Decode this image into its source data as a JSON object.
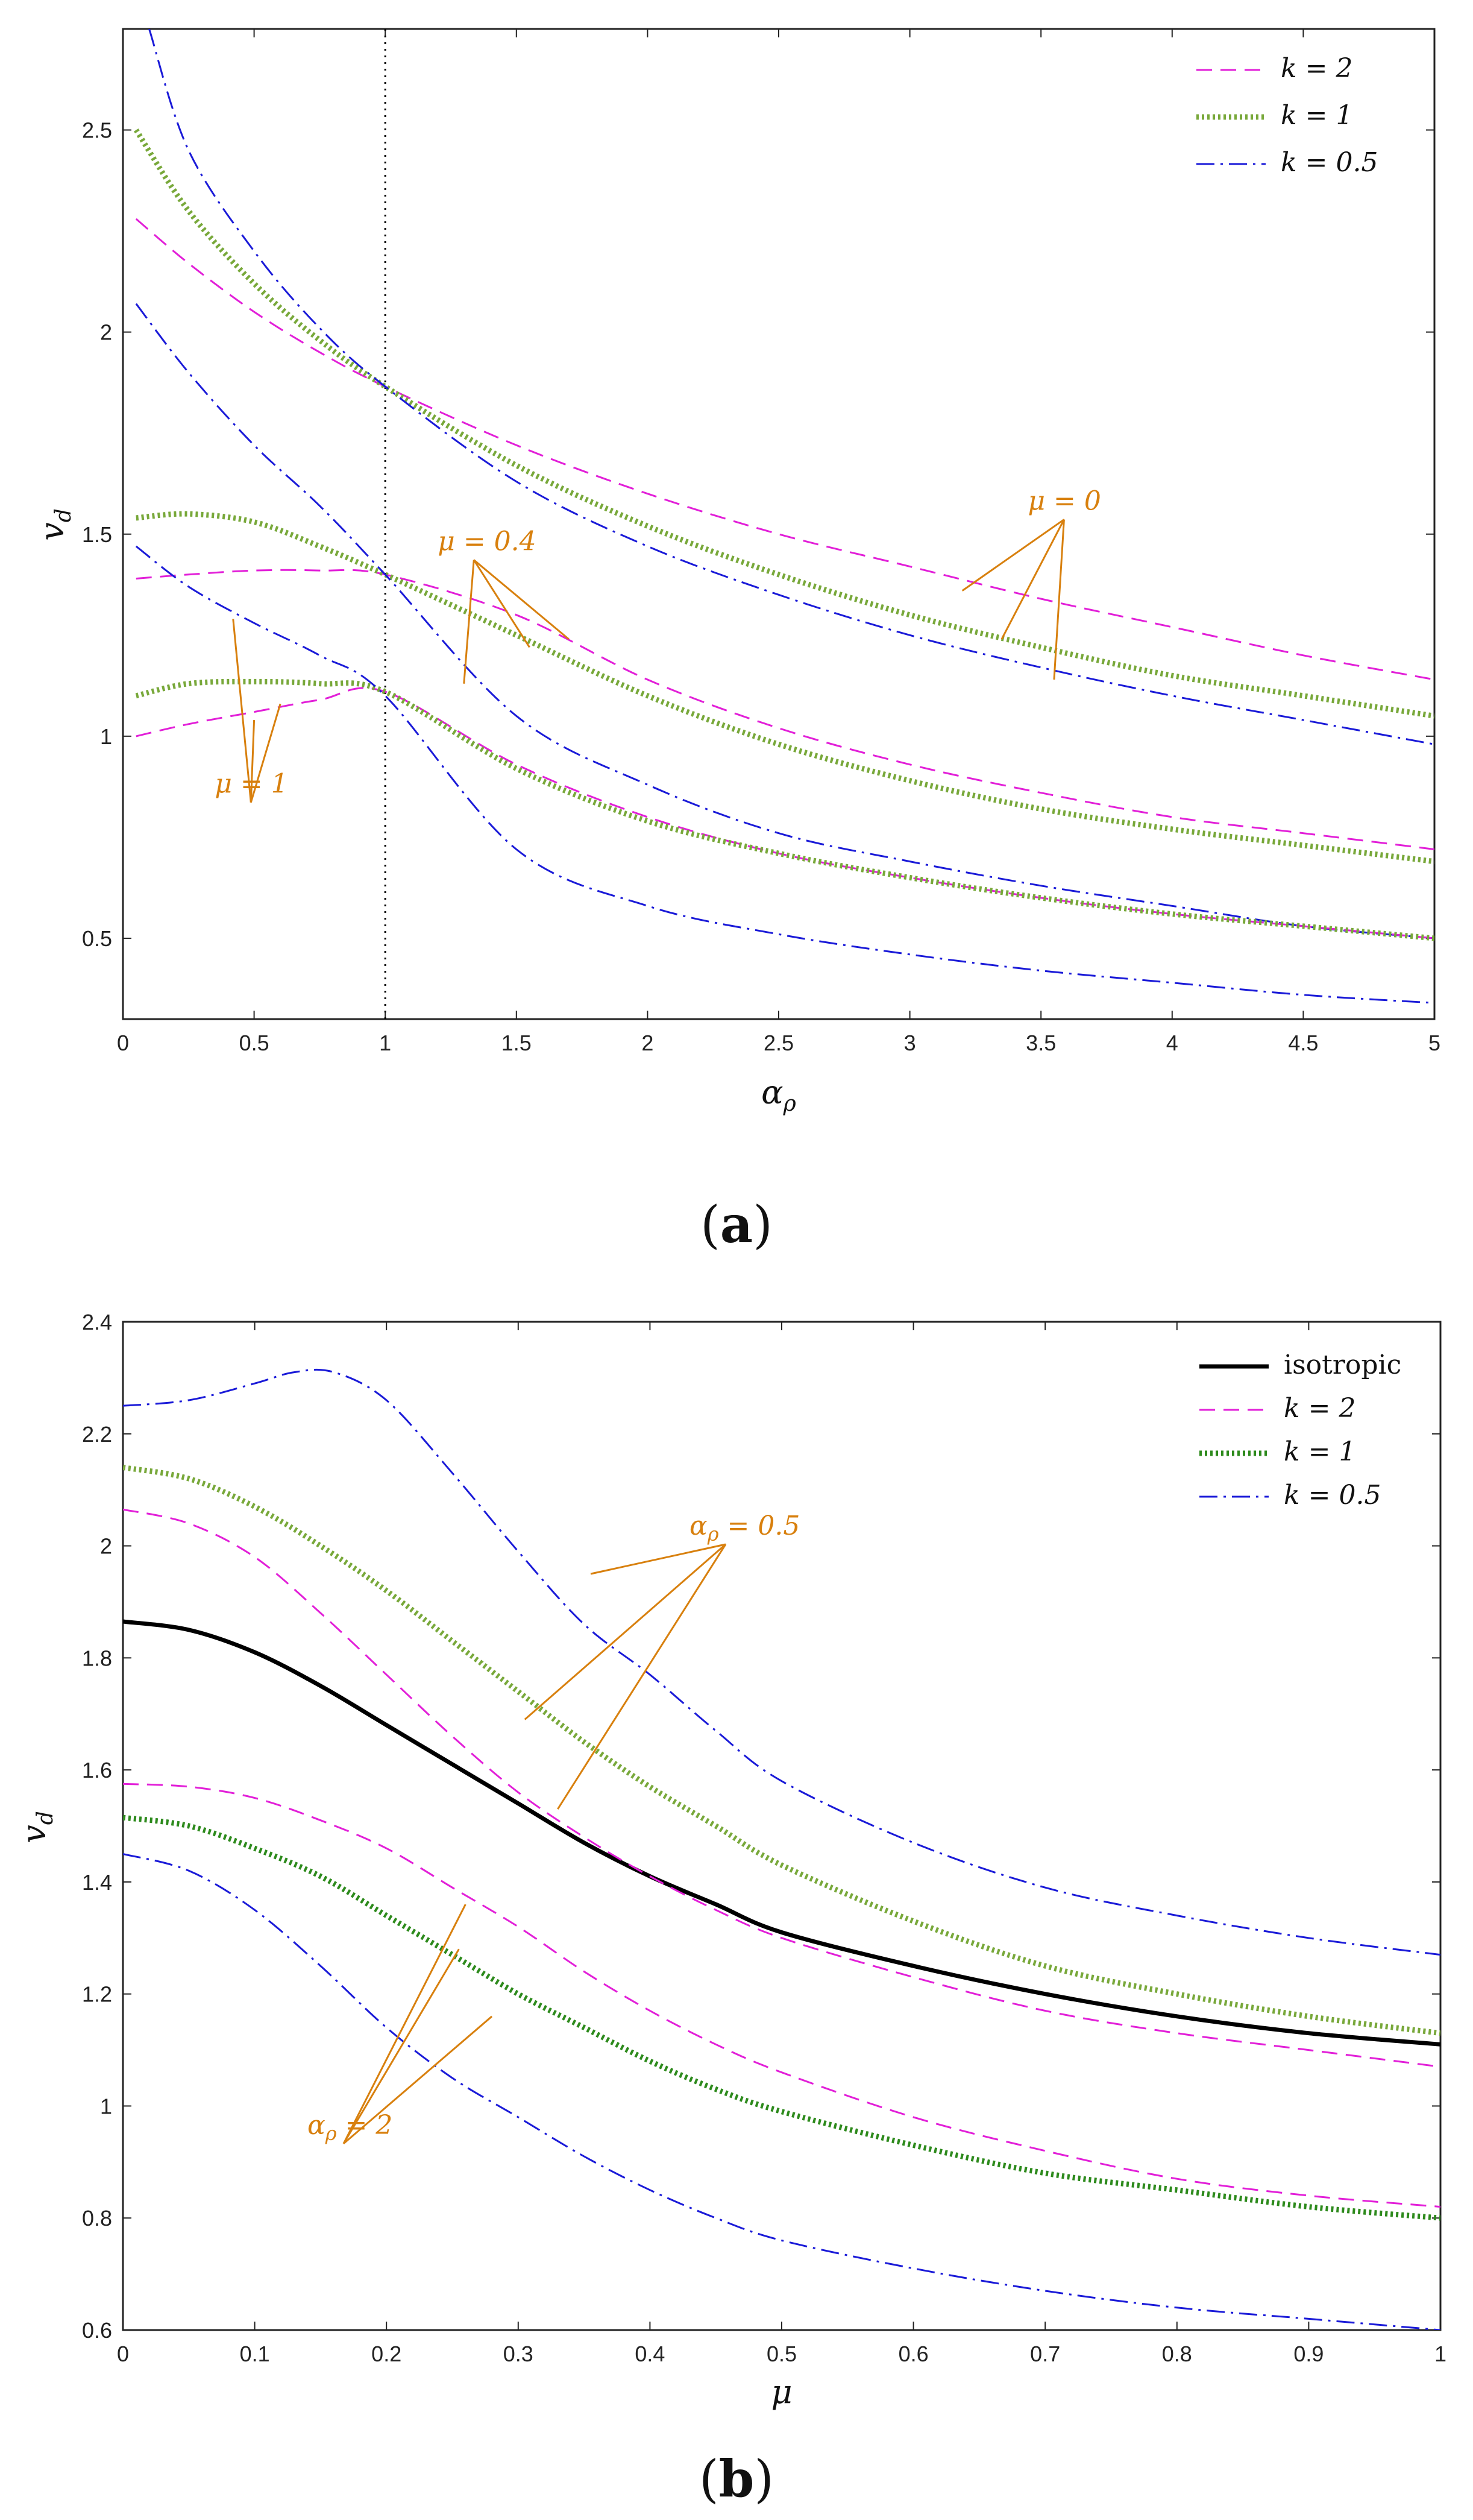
{
  "chart_data": [
    {
      "type": "line",
      "panel_label": "a",
      "xlabel": "α_ρ",
      "ylabel": "v_d",
      "xlim": [
        0,
        5
      ],
      "ylim": [
        0.3,
        2.75
      ],
      "xticks": [
        0,
        0.5,
        1,
        1.5,
        2,
        2.5,
        3,
        3.5,
        4,
        4.5,
        5
      ],
      "xtick_labels": [
        "0",
        "0.5",
        "1",
        "1.5",
        "2",
        "2.5",
        "3",
        "3.5",
        "4",
        "4.5",
        "5"
      ],
      "yticks": [
        0.5,
        1,
        1.5,
        2,
        2.5
      ],
      "ytick_labels": [
        "0.5",
        "1",
        "1.5",
        "2",
        "2.5"
      ],
      "vline_x": 1,
      "legend": [
        {
          "label": "k = 2",
          "style": "k2"
        },
        {
          "label": "k = 1",
          "style": "k1"
        },
        {
          "label": "k = 0.5",
          "style": "k05"
        }
      ],
      "series": [
        {
          "name": "k = 2, μ = 0",
          "style": "k2",
          "x": [
            0.05,
            0.25,
            0.5,
            0.75,
            1,
            1.5,
            2,
            2.5,
            3,
            3.5,
            4,
            4.5,
            5
          ],
          "y": [
            2.28,
            2.17,
            2.05,
            1.95,
            1.865,
            1.72,
            1.6,
            1.5,
            1.42,
            1.34,
            1.27,
            1.2,
            1.14
          ]
        },
        {
          "name": "k = 1, μ = 0",
          "style": "k1",
          "x": [
            0.05,
            0.25,
            0.5,
            0.75,
            1,
            1.5,
            2,
            2.5,
            3,
            3.5,
            4,
            4.5,
            5
          ],
          "y": [
            2.5,
            2.3,
            2.12,
            1.98,
            1.865,
            1.67,
            1.52,
            1.4,
            1.3,
            1.22,
            1.15,
            1.1,
            1.05
          ]
        },
        {
          "name": "k = 0.5, μ = 0",
          "style": "k05",
          "x": [
            0.1,
            0.25,
            0.5,
            0.75,
            1,
            1.5,
            2,
            2.5,
            3,
            3.5,
            4,
            4.5,
            5
          ],
          "y": [
            2.75,
            2.45,
            2.2,
            2.01,
            1.865,
            1.63,
            1.47,
            1.35,
            1.25,
            1.17,
            1.1,
            1.04,
            0.98
          ]
        },
        {
          "name": "k = 2, μ = 0.4",
          "style": "k2",
          "x": [
            0.05,
            0.25,
            0.5,
            0.75,
            1,
            1.5,
            2,
            2.5,
            3,
            3.5,
            4,
            4.5,
            5
          ],
          "y": [
            1.39,
            1.4,
            1.41,
            1.41,
            1.4,
            1.3,
            1.14,
            1.02,
            0.93,
            0.86,
            0.8,
            0.76,
            0.72
          ]
        },
        {
          "name": "k = 1, μ = 0.4",
          "style": "k1",
          "x": [
            0.05,
            0.25,
            0.5,
            0.75,
            1,
            1.5,
            2,
            2.5,
            3,
            3.5,
            4,
            4.5,
            5
          ],
          "y": [
            1.54,
            1.55,
            1.53,
            1.47,
            1.4,
            1.25,
            1.1,
            0.98,
            0.89,
            0.82,
            0.77,
            0.73,
            0.69
          ]
        },
        {
          "name": "k = 0.5, μ = 0.4",
          "style": "k05",
          "x": [
            0.05,
            0.25,
            0.5,
            0.75,
            1,
            1.5,
            2,
            2.5,
            3,
            3.5,
            4,
            4.5,
            5
          ],
          "y": [
            2.07,
            1.9,
            1.72,
            1.57,
            1.4,
            1.05,
            0.88,
            0.76,
            0.69,
            0.63,
            0.58,
            0.53,
            0.5
          ]
        },
        {
          "name": "k = 2, μ = 1",
          "style": "k2",
          "x": [
            0.05,
            0.25,
            0.5,
            0.75,
            1,
            1.5,
            2,
            2.5,
            3,
            3.5,
            4,
            4.5,
            5
          ],
          "y": [
            1.0,
            1.03,
            1.06,
            1.09,
            1.11,
            0.93,
            0.8,
            0.71,
            0.65,
            0.6,
            0.56,
            0.53,
            0.5
          ]
        },
        {
          "name": "k = 1, μ = 1",
          "style": "k1",
          "x": [
            0.05,
            0.25,
            0.5,
            0.75,
            1,
            1.5,
            2,
            2.5,
            3,
            3.5,
            4,
            4.5,
            5
          ],
          "y": [
            1.1,
            1.13,
            1.135,
            1.13,
            1.11,
            0.92,
            0.79,
            0.71,
            0.65,
            0.6,
            0.56,
            0.53,
            0.5
          ]
        },
        {
          "name": "k = 0.5, μ = 1",
          "style": "k05",
          "x": [
            0.05,
            0.25,
            0.5,
            0.75,
            1,
            1.5,
            2,
            2.5,
            3,
            3.5,
            4,
            4.5,
            5
          ],
          "y": [
            1.47,
            1.37,
            1.28,
            1.2,
            1.1,
            0.72,
            0.58,
            0.51,
            0.46,
            0.42,
            0.39,
            0.36,
            0.34
          ]
        }
      ],
      "annotations": [
        {
          "text": "μ = 0",
          "x": 3.45,
          "y": 1.56,
          "arrows_to": [
            [
              3.2,
              1.36
            ],
            [
              3.35,
              1.24
            ],
            [
              3.55,
              1.14
            ]
          ]
        },
        {
          "text": "μ = 0.4",
          "x": 1.2,
          "y": 1.46,
          "arrows_to": [
            [
              1.7,
              1.24
            ],
            [
              1.55,
              1.22
            ],
            [
              1.3,
              1.13
            ]
          ]
        },
        {
          "text": "μ = 1",
          "x": 0.35,
          "y": 0.86,
          "arrows_to": [
            [
              0.42,
              1.29
            ],
            [
              0.5,
              1.04
            ],
            [
              0.6,
              1.08
            ]
          ]
        }
      ]
    },
    {
      "type": "line",
      "panel_label": "b",
      "xlabel": "μ",
      "ylabel": "v_d",
      "xlim": [
        0,
        1
      ],
      "ylim": [
        0.6,
        2.4
      ],
      "xticks": [
        0,
        0.1,
        0.2,
        0.3,
        0.4,
        0.5,
        0.6,
        0.7,
        0.8,
        0.9,
        1
      ],
      "xtick_labels": [
        "0",
        "0.1",
        "0.2",
        "0.3",
        "0.4",
        "0.5",
        "0.6",
        "0.7",
        "0.8",
        "0.9",
        "1"
      ],
      "yticks": [
        0.6,
        0.8,
        1,
        1.2,
        1.4,
        1.6,
        1.8,
        2,
        2.2,
        2.4
      ],
      "ytick_labels": [
        "0.6",
        "0.8",
        "1",
        "1.2",
        "1.4",
        "1.6",
        "1.8",
        "2",
        "2.2",
        "2.4"
      ],
      "legend": [
        {
          "label": "isotropic",
          "style": "iso"
        },
        {
          "label": "k = 2",
          "style": "k2"
        },
        {
          "label": "k = 1",
          "style": "k1b"
        },
        {
          "label": "k = 0.5",
          "style": "k05"
        }
      ],
      "series": [
        {
          "name": "isotropic",
          "style": "iso",
          "x": [
            0,
            0.05,
            0.1,
            0.15,
            0.2,
            0.25,
            0.3,
            0.35,
            0.4,
            0.45,
            0.5,
            0.6,
            0.7,
            0.8,
            0.9,
            1
          ],
          "y": [
            1.865,
            1.85,
            1.81,
            1.75,
            1.68,
            1.61,
            1.54,
            1.47,
            1.41,
            1.36,
            1.31,
            1.25,
            1.2,
            1.16,
            1.13,
            1.11
          ]
        },
        {
          "name": "k = 2, α_ρ = 0.5",
          "style": "k2",
          "x": [
            0,
            0.05,
            0.1,
            0.15,
            0.2,
            0.25,
            0.3,
            0.35,
            0.4,
            0.45,
            0.5,
            0.6,
            0.7,
            0.8,
            0.9,
            1
          ],
          "y": [
            2.065,
            2.04,
            1.98,
            1.88,
            1.77,
            1.66,
            1.56,
            1.48,
            1.41,
            1.35,
            1.3,
            1.23,
            1.17,
            1.13,
            1.1,
            1.07
          ]
        },
        {
          "name": "k = 1, α_ρ = 0.5",
          "style": "k1",
          "x": [
            0,
            0.05,
            0.1,
            0.15,
            0.2,
            0.25,
            0.3,
            0.35,
            0.4,
            0.45,
            0.5,
            0.6,
            0.7,
            0.8,
            0.9,
            1
          ],
          "y": [
            2.14,
            2.12,
            2.07,
            2.0,
            1.92,
            1.83,
            1.74,
            1.65,
            1.57,
            1.5,
            1.43,
            1.33,
            1.25,
            1.2,
            1.16,
            1.13
          ]
        },
        {
          "name": "k = 0.5, α_ρ = 0.5",
          "style": "k05",
          "x": [
            0,
            0.05,
            0.1,
            0.13,
            0.16,
            0.2,
            0.25,
            0.3,
            0.35,
            0.4,
            0.45,
            0.5,
            0.6,
            0.7,
            0.8,
            0.9,
            1
          ],
          "y": [
            2.25,
            2.26,
            2.29,
            2.31,
            2.31,
            2.26,
            2.13,
            1.99,
            1.86,
            1.77,
            1.67,
            1.58,
            1.47,
            1.39,
            1.34,
            1.3,
            1.27
          ]
        },
        {
          "name": "k = 2, α_ρ = 2",
          "style": "k2",
          "x": [
            0,
            0.05,
            0.1,
            0.15,
            0.2,
            0.25,
            0.3,
            0.35,
            0.4,
            0.45,
            0.5,
            0.6,
            0.7,
            0.8,
            0.9,
            1
          ],
          "y": [
            1.575,
            1.57,
            1.55,
            1.51,
            1.46,
            1.39,
            1.32,
            1.24,
            1.17,
            1.11,
            1.06,
            0.98,
            0.92,
            0.87,
            0.84,
            0.82
          ]
        },
        {
          "name": "k = 1, α_ρ = 2",
          "style": "k1b",
          "x": [
            0,
            0.05,
            0.1,
            0.15,
            0.2,
            0.25,
            0.3,
            0.35,
            0.4,
            0.45,
            0.5,
            0.6,
            0.7,
            0.8,
            0.9,
            1
          ],
          "y": [
            1.515,
            1.5,
            1.46,
            1.41,
            1.34,
            1.27,
            1.2,
            1.14,
            1.08,
            1.03,
            0.99,
            0.93,
            0.88,
            0.85,
            0.82,
            0.8
          ]
        },
        {
          "name": "k = 0.5, α_ρ = 2",
          "style": "k05",
          "x": [
            0,
            0.05,
            0.1,
            0.15,
            0.2,
            0.25,
            0.3,
            0.35,
            0.4,
            0.45,
            0.5,
            0.6,
            0.7,
            0.8,
            0.9,
            1
          ],
          "y": [
            1.45,
            1.42,
            1.35,
            1.25,
            1.14,
            1.05,
            0.98,
            0.91,
            0.85,
            0.8,
            0.76,
            0.71,
            0.67,
            0.64,
            0.62,
            0.6
          ]
        }
      ],
      "annotations": [
        {
          "text": "α_ρ = 0.5",
          "x": 0.43,
          "y": 2.02,
          "arrows_to": [
            [
              0.355,
              1.95
            ],
            [
              0.305,
              1.69
            ],
            [
              0.33,
              1.53
            ]
          ]
        },
        {
          "text": "α_ρ = 2",
          "x": 0.14,
          "y": 0.95,
          "arrows_to": [
            [
              0.26,
              1.36
            ],
            [
              0.255,
              1.28
            ],
            [
              0.28,
              1.16
            ]
          ]
        }
      ]
    }
  ],
  "styles": {
    "k2": {
      "color": "#e21fd8",
      "width": 3,
      "dash": "26 14"
    },
    "k1": {
      "color": "#78a83a",
      "width": 9,
      "dash": "4 5"
    },
    "k1b": {
      "color": "#2d8a1c",
      "width": 9,
      "dash": "4 5"
    },
    "k05": {
      "color": "#1a1ad8",
      "width": 3,
      "dash": "30 10 4 10"
    },
    "iso": {
      "color": "#000000",
      "width": 7,
      "dash": ""
    },
    "vline": {
      "color": "#000000",
      "width": 3,
      "dash": "3 8"
    },
    "annotation": {
      "color": "#d8800e"
    }
  }
}
